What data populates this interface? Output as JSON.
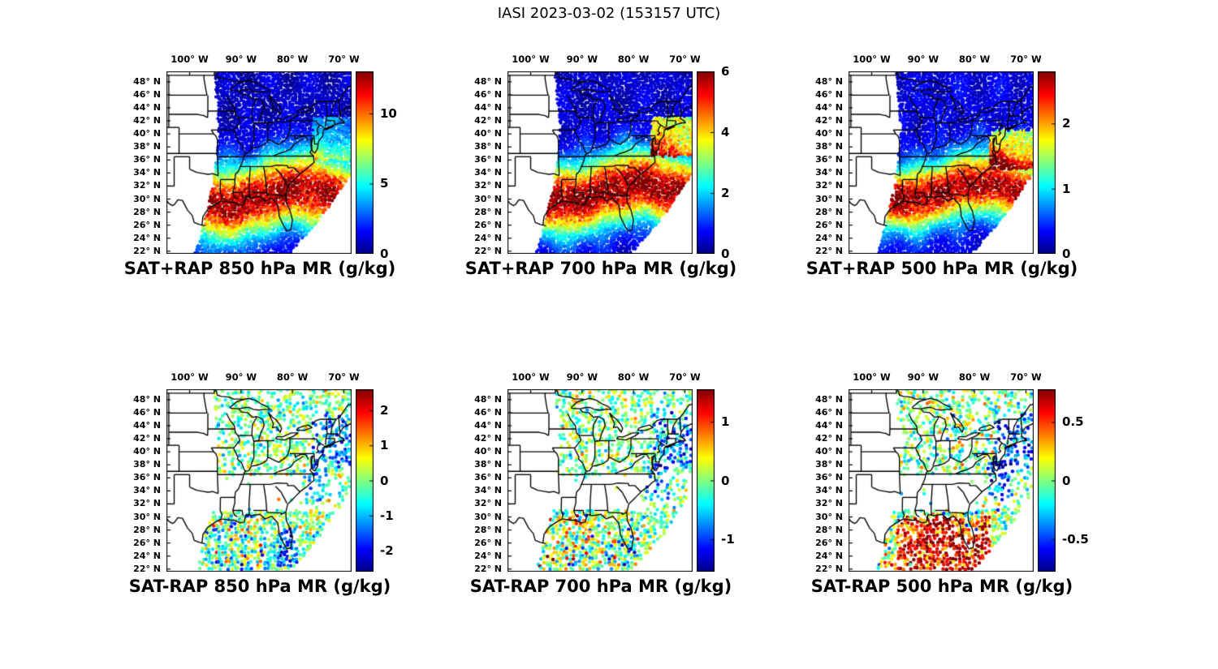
{
  "title": "IASI 2023-03-02 (153157 UTC)",
  "axes": {
    "x_ticks": [
      "100° W",
      "90° W",
      "80° W",
      "70° W"
    ],
    "x_tick_values": [
      -100,
      -90,
      -80,
      -70
    ],
    "y_ticks": [
      "48° N",
      "46° N",
      "44° N",
      "42° N",
      "40° N",
      "38° N",
      "36° N",
      "34° N",
      "32° N",
      "30° N",
      "28° N",
      "26° N",
      "24° N",
      "22° N"
    ],
    "y_tick_values": [
      48,
      46,
      44,
      42,
      40,
      38,
      36,
      34,
      32,
      30,
      28,
      26,
      24,
      22
    ],
    "lon_range": [
      -104.5,
      -68.5
    ],
    "lat_range": [
      21.6,
      49.6
    ]
  },
  "swath_polygon": [
    [
      -95.3,
      49.6
    ],
    [
      -68.5,
      49.6
    ],
    [
      -68.5,
      34.0
    ],
    [
      -74.0,
      27.5
    ],
    [
      -80.5,
      21.6
    ],
    [
      -99.0,
      21.6
    ],
    [
      -98.0,
      24.0
    ],
    [
      -95.5,
      32.0
    ],
    [
      -94.3,
      40.0
    ]
  ],
  "chart_data": [
    {
      "type": "heatmap",
      "caption": "SAT+RAP 850 hPa MR (g/kg)",
      "colorbar": {
        "min": 0,
        "max": 13,
        "ticks": [
          "0",
          "5",
          "10"
        ],
        "tick_values": [
          0,
          5,
          10
        ],
        "colormap": "jet"
      },
      "field": {
        "kind": "sum",
        "peak_lat": 30.3,
        "sigma": 5.5,
        "base": 0.07,
        "amp": 0.9,
        "regions": [
          {
            "lon": [
              -76,
              -68.5
            ],
            "lat": [
              36,
              42.5
            ],
            "add": 0.18,
            "amp": 0.05
          }
        ]
      }
    },
    {
      "type": "heatmap",
      "caption": "SAT+RAP 700 hPa MR (g/kg)",
      "colorbar": {
        "min": 0,
        "max": 6,
        "ticks": [
          "0",
          "2",
          "4",
          "6"
        ],
        "tick_values": [
          0,
          2,
          4,
          6
        ],
        "colormap": "jet"
      },
      "field": {
        "kind": "sum",
        "peak_lat": 31.0,
        "sigma": 5.2,
        "base": 0.08,
        "amp": 0.92,
        "regions": [
          {
            "lon": [
              -76.5,
              -68.5
            ],
            "lat": [
              36.5,
              42.5
            ],
            "add": 0.5,
            "amp": 0.1
          }
        ]
      }
    },
    {
      "type": "heatmap",
      "caption": "SAT+RAP 500 hPa MR (g/kg)",
      "colorbar": {
        "min": 0,
        "max": 2.8,
        "ticks": [
          "0",
          "1",
          "2"
        ],
        "tick_values": [
          0,
          1,
          2
        ],
        "colormap": "jet"
      },
      "field": {
        "kind": "sum",
        "peak_lat": 31.2,
        "sigma": 4.6,
        "base": 0.1,
        "amp": 0.88,
        "regions": [
          {
            "lon": [
              -77,
              -68.5
            ],
            "lat": [
              34.5,
              40.5
            ],
            "add": 0.42,
            "amp": 0.1
          }
        ]
      }
    },
    {
      "type": "heatmap",
      "caption": "SAT-RAP 850 hPa MR (g/kg)",
      "colorbar": {
        "min": -2.6,
        "max": 2.6,
        "ticks": [
          "-2",
          "-1",
          "0",
          "1",
          "2"
        ],
        "tick_values": [
          -2,
          -1,
          0,
          1,
          2
        ],
        "colormap": "jet"
      },
      "field": {
        "kind": "diff",
        "noise": 0.35,
        "coverage": [
          {
            "lon": [
              -104.5,
              -68.5
            ],
            "lat": [
              36.5,
              49.6
            ],
            "p": 0.5
          },
          {
            "lon": [
              -78.5,
              -68.5
            ],
            "lat": [
              31,
              36.5
            ],
            "p": 0.4
          },
          {
            "lon": [
              -104.5,
              -68.5
            ],
            "lat": [
              21.6,
              31
            ],
            "p": 0.8
          }
        ],
        "regions": [
          {
            "lon": [
              -76,
              -68.5
            ],
            "lat": [
              37.5,
              46
            ],
            "add": -0.42,
            "amp": 0.2
          },
          {
            "lon": [
              -83,
              -79
            ],
            "lat": [
              22.5,
              28.5
            ],
            "add": -0.5,
            "amp": 0.25
          },
          {
            "lon": [
              -99,
              -83
            ],
            "lat": [
              21.6,
              30.5
            ],
            "add": -0.1,
            "amp": 0.4
          },
          {
            "lon": [
              -77.5,
              -73
            ],
            "lat": [
              32.5,
              38
            ],
            "add": -0.42,
            "amp": 0.25
          }
        ]
      }
    },
    {
      "type": "heatmap",
      "caption": "SAT-RAP 700 hPa MR (g/kg)",
      "colorbar": {
        "min": -1.55,
        "max": 1.55,
        "ticks": [
          "-1",
          "0",
          "1"
        ],
        "tick_values": [
          -1,
          0,
          1
        ],
        "colormap": "jet"
      },
      "field": {
        "kind": "diff",
        "noise": 0.35,
        "coverage": [
          {
            "lon": [
              -104.5,
              -68.5
            ],
            "lat": [
              36.5,
              49.6
            ],
            "p": 0.5
          },
          {
            "lon": [
              -78.5,
              -68.5
            ],
            "lat": [
              31,
              36.5
            ],
            "p": 0.4
          },
          {
            "lon": [
              -104.5,
              -68.5
            ],
            "lat": [
              21.6,
              31
            ],
            "p": 0.8
          }
        ],
        "regions": [
          {
            "lon": [
              -76,
              -68.5
            ],
            "lat": [
              37.5,
              46
            ],
            "add": -0.42,
            "amp": 0.25
          },
          {
            "lon": [
              -99,
              -83
            ],
            "lat": [
              21.6,
              30.5
            ],
            "add": 0.08,
            "amp": 0.45
          },
          {
            "lon": [
              -83,
              -79
            ],
            "lat": [
              22.5,
              28.5
            ],
            "add": -0.15,
            "amp": 0.45
          },
          {
            "lon": [
              -77.5,
              -73
            ],
            "lat": [
              32.5,
              38
            ],
            "add": -0.4,
            "amp": 0.3
          }
        ]
      }
    },
    {
      "type": "heatmap",
      "caption": "SAT-RAP 500 hPa MR (g/kg)",
      "colorbar": {
        "min": -0.78,
        "max": 0.78,
        "ticks": [
          "-0.5",
          "0",
          "0.5"
        ],
        "tick_values": [
          -0.5,
          0,
          0.5
        ],
        "colormap": "jet"
      },
      "field": {
        "kind": "diff",
        "noise": 0.4,
        "coverage": [
          {
            "lon": [
              -104.5,
              -68.5
            ],
            "lat": [
              36.5,
              49.6
            ],
            "p": 0.5
          },
          {
            "lon": [
              -78.5,
              -68.5
            ],
            "lat": [
              31,
              36.5
            ],
            "p": 0.4
          },
          {
            "lon": [
              -104.5,
              -68.5
            ],
            "lat": [
              21.6,
              31
            ],
            "p": 0.8
          }
        ],
        "regions": [
          {
            "lon": [
              -76,
              -68.5
            ],
            "lat": [
              37.5,
              46
            ],
            "add": -0.5,
            "amp": 0.25
          },
          {
            "lon": [
              -95,
              -77
            ],
            "lat": [
              21.6,
              30
            ],
            "add": 0.78,
            "amp": 0.3
          },
          {
            "lon": [
              -99.5,
              -95
            ],
            "lat": [
              21.6,
              28.5
            ],
            "add": 0.15,
            "amp": 0.45
          },
          {
            "lon": [
              -82,
              -78.5
            ],
            "lat": [
              27,
              31.5
            ],
            "add": -0.45,
            "amp": 0.3
          },
          {
            "lon": [
              -77.5,
              -72.5
            ],
            "lat": [
              32.5,
              38.5
            ],
            "add": -0.5,
            "amp": 0.3
          }
        ]
      }
    }
  ]
}
